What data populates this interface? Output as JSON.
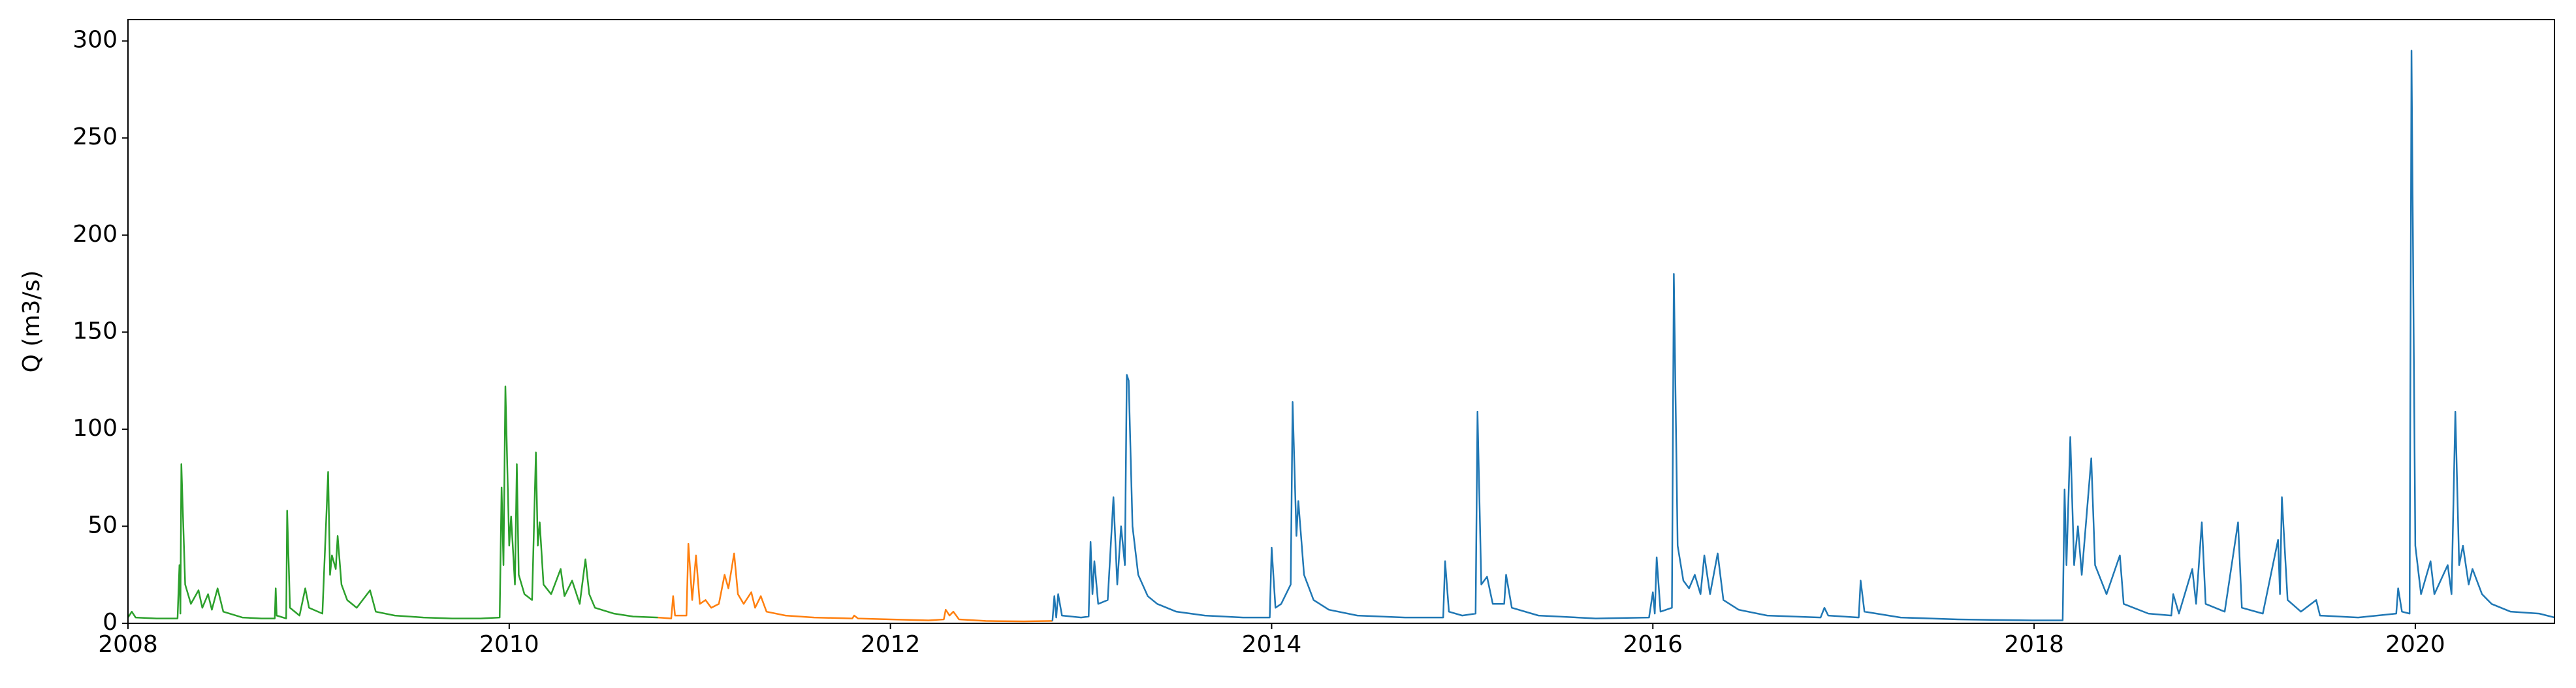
{
  "chart_data": {
    "type": "line",
    "y_label": "Q (m3/s)",
    "xlim": [
      2008,
      2020.73
    ],
    "xticks": [
      2008,
      2010,
      2012,
      2014,
      2016,
      2018,
      2020
    ],
    "ylim": [
      0,
      311
    ],
    "yticks": [
      0,
      50,
      100,
      150,
      200,
      250,
      300
    ],
    "series": [
      {
        "color": "#2ca02c",
        "x": [
          2008.0,
          2008.02,
          2008.04,
          2008.15,
          2008.26,
          2008.27,
          2008.275,
          2008.28,
          2008.3,
          2008.33,
          2008.37,
          2008.39,
          2008.42,
          2008.44,
          2008.47,
          2008.5,
          2008.6,
          2008.7,
          2008.77,
          2008.775,
          2008.78,
          2008.83,
          2008.835,
          2008.85,
          2008.9,
          2008.93,
          2008.95,
          2009.02,
          2009.05,
          2009.06,
          2009.07,
          2009.09,
          2009.1,
          2009.12,
          2009.15,
          2009.2,
          2009.27,
          2009.3,
          2009.4,
          2009.55,
          2009.7,
          2009.85,
          2009.95,
          2009.96,
          2009.97,
          2009.98,
          2010.0,
          2010.01,
          2010.03,
          2010.04,
          2010.05,
          2010.08,
          2010.12,
          2010.14,
          2010.15,
          2010.16,
          2010.18,
          2010.22,
          2010.27,
          2010.29,
          2010.33,
          2010.37,
          2010.4,
          2010.42,
          2010.45,
          2010.55,
          2010.65,
          2010.78
        ],
        "values": [
          3,
          6,
          3,
          2.5,
          2.5,
          30,
          5,
          82,
          20,
          10,
          17,
          8,
          15,
          7,
          18,
          6,
          3,
          2.5,
          2.5,
          18,
          4,
          2.5,
          58,
          8,
          4,
          18,
          8,
          5,
          78,
          25,
          35,
          28,
          45,
          20,
          12,
          8,
          17,
          6,
          4,
          3,
          2.5,
          2.5,
          3,
          70,
          30,
          122,
          40,
          55,
          20,
          82,
          25,
          15,
          12,
          88,
          40,
          52,
          20,
          15,
          28,
          14,
          22,
          10,
          33,
          15,
          8,
          5,
          3.5,
          3
        ]
      },
      {
        "color": "#ff7f0e",
        "x": [
          2010.78,
          2010.85,
          2010.86,
          2010.87,
          2010.93,
          2010.94,
          2010.96,
          2010.98,
          2011.0,
          2011.03,
          2011.06,
          2011.1,
          2011.13,
          2011.15,
          2011.18,
          2011.2,
          2011.23,
          2011.27,
          2011.29,
          2011.32,
          2011.35,
          2011.45,
          2011.6,
          2011.8,
          2011.81,
          2011.83,
          2012.0,
          2012.2,
          2012.28,
          2012.29,
          2012.31,
          2012.33,
          2012.36,
          2012.5,
          2012.7,
          2012.85
        ],
        "values": [
          3,
          2.5,
          14,
          4,
          4,
          41,
          12,
          35,
          10,
          12,
          8,
          10,
          25,
          18,
          36,
          15,
          10,
          16,
          8,
          14,
          6,
          4,
          3,
          2.5,
          4,
          2.5,
          2,
          1.5,
          2,
          7,
          4,
          6,
          2,
          1.2,
          1,
          1.2
        ]
      },
      {
        "color": "#1f77b4",
        "x": [
          2012.85,
          2012.86,
          2012.87,
          2012.88,
          2012.9,
          2013.0,
          2013.04,
          2013.05,
          2013.06,
          2013.07,
          2013.09,
          2013.14,
          2013.17,
          2013.19,
          2013.21,
          2013.23,
          2013.24,
          2013.25,
          2013.27,
          2013.3,
          2013.35,
          2013.4,
          2013.5,
          2013.65,
          2013.85,
          2013.99,
          2014.0,
          2014.02,
          2014.05,
          2014.1,
          2014.11,
          2014.13,
          2014.14,
          2014.17,
          2014.22,
          2014.3,
          2014.45,
          2014.7,
          2014.9,
          2014.91,
          2014.93,
          2015.0,
          2015.07,
          2015.08,
          2015.1,
          2015.13,
          2015.16,
          2015.22,
          2015.23,
          2015.26,
          2015.4,
          2015.7,
          2015.98,
          2016.0,
          2016.01,
          2016.02,
          2016.04,
          2016.1,
          2016.11,
          2016.13,
          2016.16,
          2016.19,
          2016.22,
          2016.25,
          2016.27,
          2016.3,
          2016.34,
          2016.37,
          2016.45,
          2016.6,
          2016.88,
          2016.9,
          2016.92,
          2017.08,
          2017.09,
          2017.11,
          2017.3,
          2017.6,
          2017.99,
          2018.15,
          2018.16,
          2018.17,
          2018.19,
          2018.21,
          2018.23,
          2018.25,
          2018.3,
          2018.32,
          2018.38,
          2018.45,
          2018.47,
          2018.6,
          2018.72,
          2018.73,
          2018.76,
          2018.83,
          2018.85,
          2018.88,
          2018.9,
          2019.0,
          2019.07,
          2019.09,
          2019.2,
          2019.28,
          2019.29,
          2019.3,
          2019.33,
          2019.4,
          2019.48,
          2019.5,
          2019.7,
          2019.9,
          2019.91,
          2019.93,
          2019.97,
          2019.98,
          2020.0,
          2020.03,
          2020.08,
          2020.1,
          2020.17,
          2020.19,
          2020.21,
          2020.23,
          2020.25,
          2020.28,
          2020.3,
          2020.35,
          2020.4,
          2020.5,
          2020.65,
          2020.73
        ],
        "values": [
          1.2,
          14,
          3,
          15,
          4,
          3,
          3.5,
          42,
          15,
          32,
          10,
          12,
          65,
          20,
          50,
          30,
          128,
          125,
          50,
          25,
          14,
          10,
          6,
          4,
          3,
          3,
          39,
          8,
          10,
          20,
          114,
          45,
          63,
          25,
          12,
          7,
          4,
          3,
          3,
          32,
          6,
          4,
          5,
          109,
          20,
          24,
          10,
          10,
          25,
          8,
          4,
          2.5,
          3,
          16,
          5,
          34,
          6,
          8,
          180,
          40,
          22,
          18,
          25,
          15,
          35,
          15,
          36,
          12,
          7,
          4,
          3,
          8,
          4,
          3,
          22,
          6,
          3,
          2,
          1.5,
          1.5,
          69,
          30,
          96,
          30,
          50,
          25,
          85,
          30,
          15,
          35,
          10,
          5,
          4,
          15,
          5,
          28,
          10,
          52,
          10,
          6,
          52,
          8,
          5,
          43,
          15,
          65,
          12,
          6,
          12,
          4,
          3,
          5,
          18,
          6,
          5,
          295,
          40,
          15,
          32,
          15,
          30,
          15,
          109,
          30,
          40,
          20,
          28,
          15,
          10,
          6,
          5,
          3
        ]
      }
    ]
  }
}
